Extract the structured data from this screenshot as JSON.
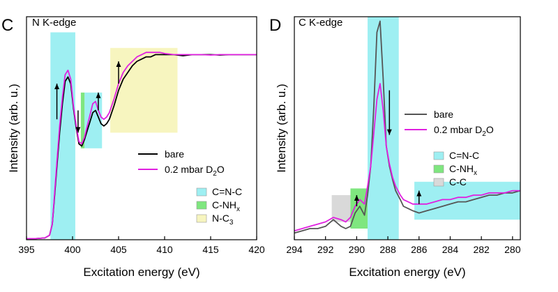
{
  "chart_data": [
    {
      "type": "line",
      "panel": "C",
      "title": "N K-edge",
      "xlabel": "Excitation energy (eV)",
      "ylabel": "Intensity (arb. u.)",
      "xlim": [
        395,
        420
      ],
      "ylim": [
        0,
        1.0
      ],
      "xticks": [
        395,
        400,
        405,
        410,
        415,
        420
      ],
      "legend_lines": [
        {
          "label": "bare",
          "color": "#000000"
        },
        {
          "label_main": "0.2 mbar D",
          "label_sub": "2",
          "label_tail": "O",
          "color": "#e020e0"
        }
      ],
      "legend_regions": [
        {
          "label_main": "C=N-C",
          "label_sub": "",
          "color": "#9eeff2"
        },
        {
          "label_main": "C-NH",
          "label_sub": "x",
          "color": "#7fe67f"
        },
        {
          "label_main": "N-C",
          "label_sub": "3",
          "color": "#f7f5bf"
        }
      ],
      "regions": [
        {
          "name": "C=N-C",
          "x0": 397.6,
          "x1": 400.3,
          "y0": 0.0,
          "y1": 0.93,
          "color": "#9eeff2"
        },
        {
          "name": "C=N-C",
          "x0": 401.3,
          "x1": 403.2,
          "y0": 0.41,
          "y1": 0.66,
          "color": "#9eeff2"
        },
        {
          "name": "C-NH_x",
          "x0": 400.9,
          "x1": 401.3,
          "y0": 0.41,
          "y1": 0.66,
          "color": "#7fe67f"
        },
        {
          "name": "N-C_3",
          "x0": 404.1,
          "x1": 411.4,
          "y0": 0.48,
          "y1": 0.86,
          "color": "#f7f5bf"
        }
      ],
      "arrows": [
        {
          "x": 398.3,
          "y_from": 0.54,
          "y_to": 0.7,
          "dir": "up"
        },
        {
          "x": 400.6,
          "y_from": 0.58,
          "y_to": 0.48,
          "dir": "down"
        },
        {
          "x": 402.8,
          "y_from": 0.58,
          "y_to": 0.66,
          "dir": "up"
        },
        {
          "x": 405.0,
          "y_from": 0.7,
          "y_to": 0.8,
          "dir": "up"
        }
      ],
      "series": [
        {
          "name": "bare",
          "color": "#000000",
          "x": [
            395,
            396,
            397,
            397.5,
            397.8,
            398.0,
            398.3,
            398.6,
            398.9,
            399.2,
            399.5,
            399.8,
            400.1,
            400.4,
            400.7,
            401.0,
            401.3,
            401.6,
            401.9,
            402.2,
            402.5,
            402.8,
            403.1,
            403.4,
            403.7,
            404.0,
            404.5,
            405.0,
            405.5,
            406.0,
            406.5,
            407.0,
            407.5,
            408.0,
            408.5,
            409.0,
            409.5,
            410.0,
            411.0,
            412.0,
            413.0,
            414.0,
            415.0,
            416.0,
            417.0,
            418.0,
            419.0,
            420.0
          ],
          "y": [
            0.005,
            0.005,
            0.008,
            0.02,
            0.07,
            0.17,
            0.33,
            0.48,
            0.61,
            0.71,
            0.73,
            0.7,
            0.59,
            0.5,
            0.43,
            0.42,
            0.45,
            0.49,
            0.53,
            0.57,
            0.58,
            0.55,
            0.52,
            0.51,
            0.52,
            0.54,
            0.6,
            0.67,
            0.72,
            0.75,
            0.78,
            0.8,
            0.81,
            0.82,
            0.82,
            0.83,
            0.83,
            0.83,
            0.83,
            0.825,
            0.83,
            0.83,
            0.83,
            0.828,
            0.83,
            0.83,
            0.83,
            0.83
          ]
        },
        {
          "name": "0.2 mbar D2O",
          "color": "#e020e0",
          "x": [
            395,
            396,
            397,
            397.5,
            397.8,
            398.0,
            398.3,
            398.6,
            398.9,
            399.2,
            399.5,
            399.8,
            400.1,
            400.4,
            400.7,
            401.0,
            401.3,
            401.6,
            401.9,
            402.2,
            402.5,
            402.8,
            403.1,
            403.4,
            403.7,
            404.0,
            404.5,
            405.0,
            405.5,
            406.0,
            406.5,
            407.0,
            407.5,
            408.0,
            408.5,
            409.0,
            409.5,
            410.0,
            411.0,
            412.0,
            413.0,
            414.0,
            415.0,
            416.0,
            417.0,
            418.0,
            419.0,
            420.0
          ],
          "y": [
            0.005,
            0.005,
            0.008,
            0.02,
            0.07,
            0.18,
            0.35,
            0.51,
            0.64,
            0.74,
            0.76,
            0.72,
            0.6,
            0.51,
            0.44,
            0.43,
            0.46,
            0.51,
            0.56,
            0.61,
            0.62,
            0.58,
            0.55,
            0.54,
            0.55,
            0.57,
            0.63,
            0.7,
            0.75,
            0.78,
            0.8,
            0.82,
            0.83,
            0.84,
            0.84,
            0.84,
            0.84,
            0.835,
            0.83,
            0.83,
            0.83,
            0.83,
            0.828,
            0.83,
            0.83,
            0.83,
            0.83,
            0.83
          ]
        }
      ]
    },
    {
      "type": "line",
      "panel": "D",
      "title": "C K-edge",
      "xlabel": "Excitation energy (eV)",
      "ylabel": "Intensity (arb. u.)",
      "xlim": [
        294,
        279.5
      ],
      "ylim": [
        0,
        1.0
      ],
      "xticks": [
        294,
        292,
        290,
        288,
        286,
        284,
        282,
        280
      ],
      "legend_lines": [
        {
          "label": "bare",
          "color": "#555555"
        },
        {
          "label_main": "0.2 mbar D",
          "label_sub": "2",
          "label_tail": "O",
          "color": "#e020e0"
        }
      ],
      "legend_regions": [
        {
          "label_main": "C=N-C",
          "label_sub": "",
          "color": "#9eeff2"
        },
        {
          "label_main": "C-NH",
          "label_sub": "x",
          "color": "#7fe67f"
        },
        {
          "label_main": "C-C",
          "label_sub": "",
          "color": "#d9d9d9"
        }
      ],
      "regions": [
        {
          "name": "C-C",
          "x0": 291.6,
          "x1": 290.4,
          "y0": 0.08,
          "y1": 0.2,
          "color": "#d9d9d9"
        },
        {
          "name": "C-NH_x",
          "x0": 290.4,
          "x1": 289.3,
          "y0": 0.05,
          "y1": 0.23,
          "color": "#7fe67f"
        },
        {
          "name": "C=N-C",
          "x0": 289.3,
          "x1": 287.3,
          "y0": 0.0,
          "y1": 1.0,
          "color": "#9eeff2"
        },
        {
          "name": "C=N-C",
          "x0": 286.3,
          "x1": 279.5,
          "y0": 0.09,
          "y1": 0.26,
          "color": "#9eeff2"
        }
      ],
      "arrows": [
        {
          "x": 290.0,
          "y_from": 0.15,
          "y_to": 0.2,
          "dir": "up"
        },
        {
          "x": 287.9,
          "y_from": 0.67,
          "y_to": 0.47,
          "dir": "down"
        },
        {
          "x": 286.0,
          "y_from": 0.16,
          "y_to": 0.22,
          "dir": "up"
        }
      ],
      "series": [
        {
          "name": "bare",
          "color": "#555555",
          "x": [
            294.0,
            293.5,
            293.0,
            292.5,
            292.0,
            291.5,
            291.0,
            290.7,
            290.4,
            290.1,
            289.8,
            289.5,
            289.3,
            289.1,
            288.9,
            288.7,
            288.5,
            288.3,
            288.1,
            287.9,
            287.7,
            287.5,
            287.2,
            287.0,
            286.7,
            286.4,
            286.0,
            285.5,
            285.0,
            284.5,
            284.0,
            283.5,
            283.0,
            282.5,
            282.0,
            281.5,
            281.0,
            280.5,
            280.0,
            279.5
          ],
          "y": [
            0.03,
            0.04,
            0.05,
            0.05,
            0.06,
            0.09,
            0.06,
            0.05,
            0.06,
            0.12,
            0.15,
            0.11,
            0.2,
            0.33,
            0.6,
            0.93,
            0.98,
            0.72,
            0.42,
            0.33,
            0.27,
            0.22,
            0.18,
            0.15,
            0.14,
            0.13,
            0.12,
            0.13,
            0.14,
            0.15,
            0.16,
            0.17,
            0.17,
            0.18,
            0.19,
            0.2,
            0.2,
            0.21,
            0.21,
            0.22
          ]
        },
        {
          "name": "0.2 mbar D2O",
          "color": "#e020e0",
          "x": [
            294.0,
            293.5,
            293.0,
            292.5,
            292.0,
            291.5,
            291.0,
            290.7,
            290.4,
            290.1,
            289.8,
            289.5,
            289.3,
            289.1,
            288.9,
            288.7,
            288.5,
            288.3,
            288.1,
            287.9,
            287.7,
            287.5,
            287.2,
            287.0,
            286.7,
            286.4,
            286.0,
            285.5,
            285.0,
            284.5,
            284.0,
            283.5,
            283.0,
            282.5,
            282.0,
            281.5,
            281.0,
            280.5,
            280.0,
            279.5
          ],
          "y": [
            0.04,
            0.05,
            0.06,
            0.07,
            0.08,
            0.1,
            0.09,
            0.08,
            0.1,
            0.15,
            0.18,
            0.16,
            0.24,
            0.33,
            0.48,
            0.63,
            0.7,
            0.58,
            0.42,
            0.34,
            0.28,
            0.24,
            0.2,
            0.18,
            0.17,
            0.16,
            0.16,
            0.16,
            0.17,
            0.18,
            0.18,
            0.19,
            0.19,
            0.2,
            0.2,
            0.21,
            0.21,
            0.21,
            0.22,
            0.22
          ]
        }
      ]
    }
  ]
}
